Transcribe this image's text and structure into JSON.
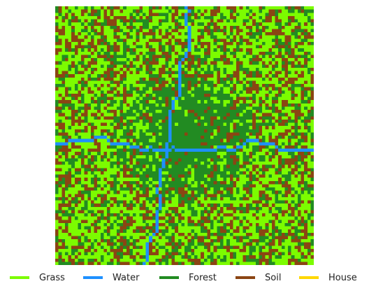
{
  "map": {
    "grid_size": 80,
    "legend": [
      {
        "label": "Grass",
        "color": "#7CFC00",
        "icon": "grass-swatch"
      },
      {
        "label": "Water",
        "color": "#1E90FF",
        "icon": "water-swatch"
      },
      {
        "label": "Forest",
        "color": "#228B22",
        "icon": "forest-swatch"
      },
      {
        "label": "Soil",
        "color": "#8B4513",
        "icon": "soil-swatch"
      },
      {
        "label": "House",
        "color": "#FFD700",
        "icon": "house-swatch"
      }
    ]
  }
}
